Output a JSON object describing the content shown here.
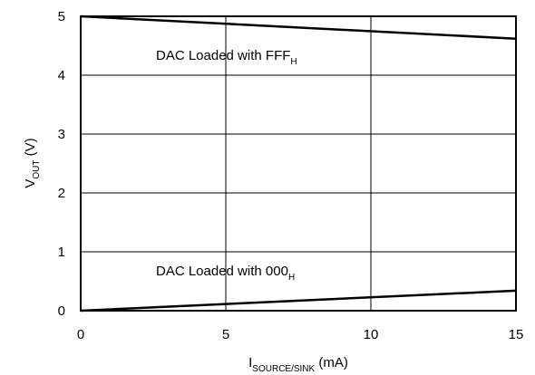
{
  "chart_data": {
    "type": "line",
    "xlabel": {
      "base": "I",
      "sub": "SOURCE/SINK",
      "rest": " (mA)"
    },
    "ylabel": {
      "base": "V",
      "sub": "OUT",
      "rest": " (V)"
    },
    "xlim": [
      0,
      15
    ],
    "ylim": [
      0,
      5
    ],
    "x_ticks": [
      0,
      5,
      10,
      15
    ],
    "y_ticks": [
      0,
      1,
      2,
      3,
      4,
      5
    ],
    "grid": true,
    "series": [
      {
        "x": [
          0,
          15
        ],
        "y": [
          5.0,
          4.62
        ]
      },
      {
        "x": [
          0,
          15
        ],
        "y": [
          0.0,
          0.34
        ]
      }
    ],
    "annotations": [
      {
        "text": "DAC Loaded with FFF",
        "sub": "H"
      },
      {
        "text": "DAC Loaded with 000",
        "sub": "H"
      }
    ]
  }
}
